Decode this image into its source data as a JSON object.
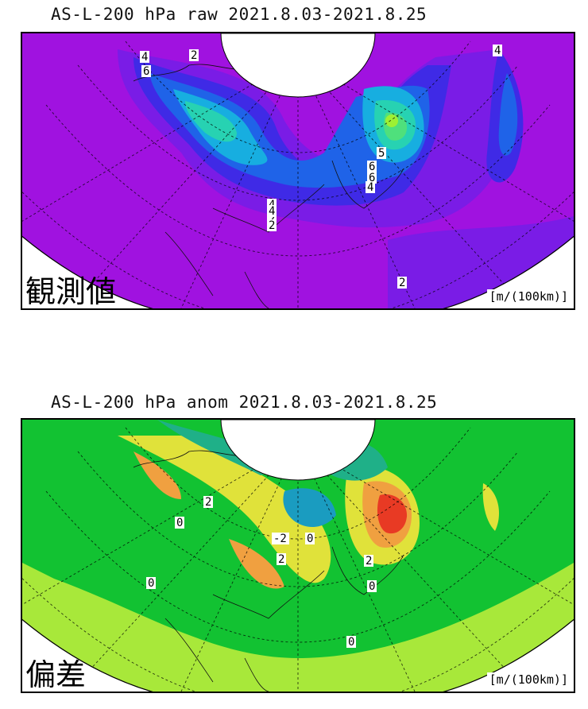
{
  "top_panel": {
    "title": "AS-L-200 hPa raw 2021.8.03-2021.8.25",
    "label": "観測値",
    "unit": "[m/(100km)]",
    "colors": {
      "background": "#a012e0",
      "level1": "#7a1ce6",
      "level2": "#3f2ae6",
      "level3": "#1f63e8",
      "level4": "#17aee0",
      "level5": "#27d2b2",
      "level6": "#4fe07c",
      "level7": "#9ef033"
    },
    "contour_labels": [
      "4",
      "2",
      "6",
      "6",
      "5",
      "6",
      "4",
      "4",
      "4",
      "2",
      "2",
      "4",
      "2"
    ]
  },
  "bottom_panel": {
    "title": "AS-L-200 hPa anom 2021.8.03-2021.8.25",
    "label": "偏差",
    "unit": "[m/(100km)]",
    "colors": {
      "background": "#12c232",
      "light_green": "#a8e83a",
      "yellow": "#e0e23a",
      "orange": "#f0a040",
      "red": "#e83a24",
      "teal": "#1fb088",
      "blue_teal": "#1a9cc0"
    },
    "contour_labels": [
      "2",
      "0",
      "-2",
      "0",
      "2",
      "2",
      "0",
      "0",
      "0"
    ]
  }
}
